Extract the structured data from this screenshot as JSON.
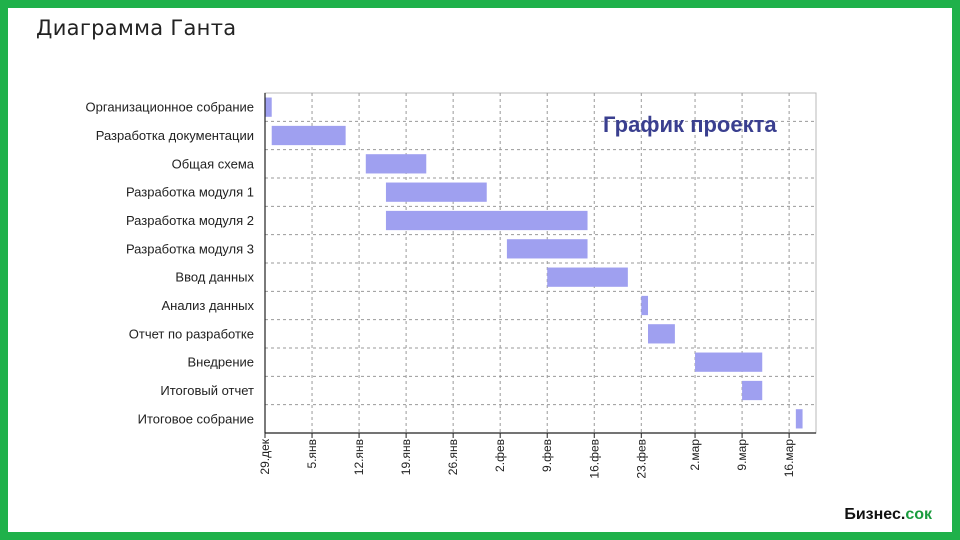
{
  "slide": {
    "title": "Диаграмма Ганта",
    "brand_main": "Бизнес.",
    "brand_suffix": "сок",
    "border_color": "#1fb14a"
  },
  "chart_data": {
    "type": "gantt",
    "title": "График проекта",
    "bar_color": "#9fa0f0",
    "grid": true,
    "x_start": "2007-12-29",
    "x_end": "2008-03-20",
    "ticks": [
      "29.дек",
      "5.янв",
      "12.янв",
      "19.янв",
      "26.янв",
      "2.фев",
      "9.фев",
      "16.фев",
      "23.фев",
      "2.мар",
      "9.мар",
      "16.мар"
    ],
    "tick_dates": [
      "2007-12-29",
      "2008-01-05",
      "2008-01-12",
      "2008-01-19",
      "2008-01-26",
      "2008-02-02",
      "2008-02-09",
      "2008-02-16",
      "2008-02-23",
      "2008-03-02",
      "2008-03-09",
      "2008-03-16"
    ],
    "tasks": [
      {
        "name": "Организационное собрание",
        "start": "2007-12-29",
        "end": "2007-12-30"
      },
      {
        "name": "Разработка документации",
        "start": "2007-12-30",
        "end": "2008-01-10"
      },
      {
        "name": "Общая схема",
        "start": "2008-01-13",
        "end": "2008-01-22"
      },
      {
        "name": "Разработка модуля 1",
        "start": "2008-01-16",
        "end": "2008-01-31"
      },
      {
        "name": "Разработка модуля 2",
        "start": "2008-01-16",
        "end": "2008-02-15"
      },
      {
        "name": "Разработка модуля 3",
        "start": "2008-02-03",
        "end": "2008-02-15"
      },
      {
        "name": "Ввод данных",
        "start": "2008-02-09",
        "end": "2008-02-21"
      },
      {
        "name": "Анализ данных",
        "start": "2008-02-23",
        "end": "2008-02-24"
      },
      {
        "name": "Отчет по разработке",
        "start": "2008-02-24",
        "end": "2008-02-28"
      },
      {
        "name": "Внедрение",
        "start": "2008-03-02",
        "end": "2008-03-12"
      },
      {
        "name": "Итоговый отчет",
        "start": "2008-03-09",
        "end": "2008-03-12"
      },
      {
        "name": "Итоговое собрание",
        "start": "2008-03-17",
        "end": "2008-03-18"
      }
    ]
  }
}
